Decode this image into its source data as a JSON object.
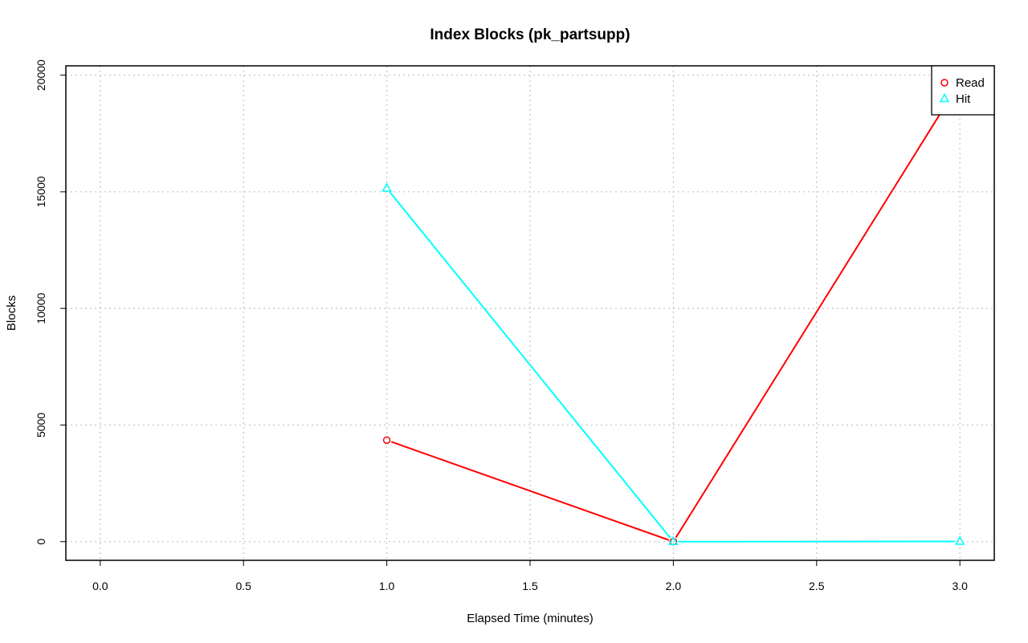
{
  "chart_data": {
    "type": "line",
    "title": "Index Blocks (pk_partsupp)",
    "xlabel": "Elapsed Time (minutes)",
    "ylabel": "Blocks",
    "xlim": [
      -0.12,
      3.12
    ],
    "ylim": [
      -800,
      20400
    ],
    "xticks": [
      0.0,
      0.5,
      1.0,
      1.5,
      2.0,
      2.5,
      3.0
    ],
    "xtick_labels": [
      "0.0",
      "0.5",
      "1.0",
      "1.5",
      "2.0",
      "2.5",
      "3.0"
    ],
    "yticks": [
      0,
      5000,
      10000,
      15000,
      20000
    ],
    "ytick_labels": [
      "0",
      "5000",
      "10000",
      "15000",
      "20000"
    ],
    "grid": true,
    "legend_position": "top-right",
    "series": [
      {
        "name": "Read",
        "color": "#ff0000",
        "marker": "circle",
        "x": [
          1,
          2,
          3
        ],
        "y": [
          4350,
          0,
          19700
        ]
      },
      {
        "name": "Hit",
        "color": "#00ffff",
        "marker": "triangle",
        "x": [
          1,
          2,
          3
        ],
        "y": [
          15150,
          0,
          10
        ]
      }
    ]
  }
}
